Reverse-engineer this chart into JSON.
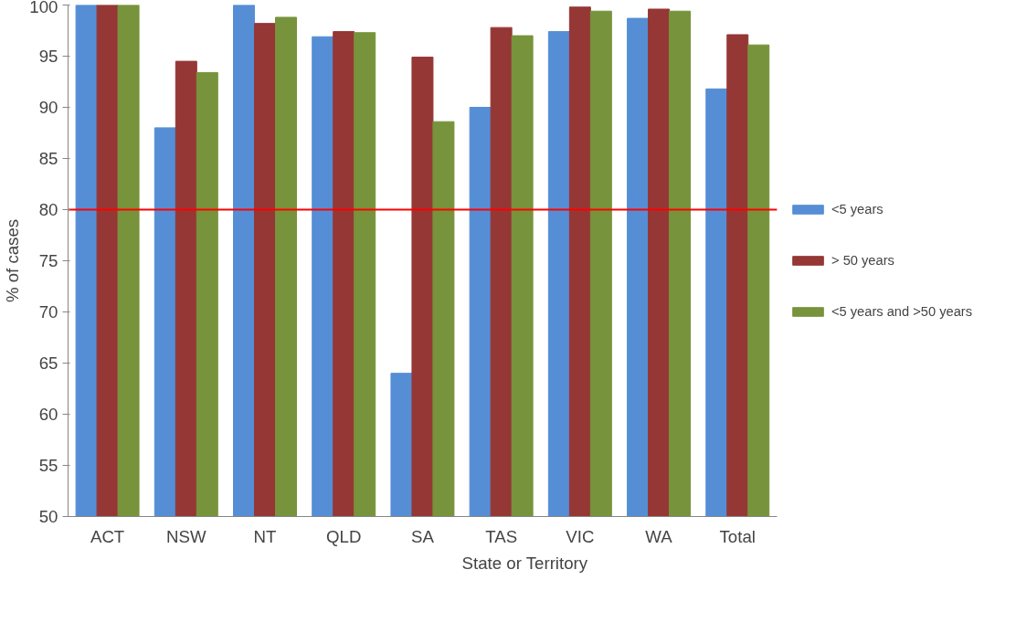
{
  "chart_data": {
    "type": "bar",
    "xlabel": "State or Territory",
    "ylabel": "% of cases",
    "categories": [
      "ACT",
      "NSW",
      "NT",
      "QLD",
      "SA",
      "TAS",
      "VIC",
      "WA",
      "Total"
    ],
    "series": [
      {
        "name": "<5 years",
        "color": "#558ed5",
        "values": [
          100,
          88.0,
          100,
          96.9,
          64.0,
          90.0,
          97.4,
          98.7,
          91.8
        ]
      },
      {
        "name": "> 50 years",
        "color": "#953735",
        "values": [
          100,
          94.5,
          98.2,
          97.4,
          94.9,
          97.8,
          99.8,
          99.6,
          97.1
        ]
      },
      {
        "name": "<5 years and >50 years",
        "color": "#77933c",
        "values": [
          100,
          93.4,
          98.8,
          97.3,
          88.6,
          97.0,
          99.4,
          99.4,
          96.1
        ]
      }
    ],
    "ylim": [
      50,
      100
    ],
    "yticks": [
      50,
      55,
      60,
      65,
      70,
      75,
      80,
      85,
      90,
      95,
      100
    ],
    "ref_lines": [
      {
        "axis": "y",
        "value": 80,
        "color": "#ff0000"
      }
    ],
    "grid": false,
    "legend": "right"
  }
}
